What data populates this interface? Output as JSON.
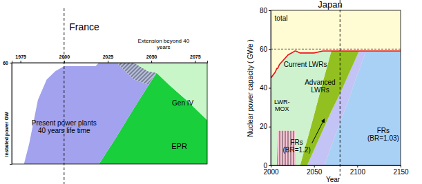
{
  "chart_data": [
    {
      "type": "area",
      "title": "France",
      "stacked": true,
      "y_label": "Installed power GW",
      "x": [
        1970,
        1977,
        1980,
        1985,
        1990,
        1995,
        2000,
        2018,
        2020,
        2030,
        2040,
        2048,
        2053,
        2060,
        2070,
        2082
      ],
      "xlim": [
        1970,
        2082
      ],
      "xticks": [
        1975,
        2000,
        2025,
        2050,
        2075
      ],
      "ylim": [
        0,
        60
      ],
      "yticks": [
        60
      ],
      "vlines": [
        2000
      ],
      "series": [
        {
          "name": "EPR",
          "color": "#19cf3c",
          "values": [
            0,
            0,
            0,
            0,
            0,
            0,
            0,
            0,
            0,
            16,
            33,
            46,
            54,
            47,
            38,
            26
          ]
        },
        {
          "name": "Present power plants 40 years life time",
          "color": "#a2a2ee",
          "values": [
            0,
            0,
            12,
            38,
            50,
            55,
            58,
            58,
            60,
            44,
            17,
            1,
            0,
            0,
            0,
            0
          ]
        },
        {
          "name": "Extension beyond 40 years",
          "color": "#b8c0de",
          "line_style": "hatch",
          "values": [
            0,
            0,
            0,
            0,
            0,
            0,
            0,
            0,
            0,
            0,
            10,
            8,
            0,
            0,
            0,
            0
          ]
        },
        {
          "name": "Gen IV",
          "color": "#c9f6c9",
          "values": [
            0,
            0,
            0,
            0,
            0,
            0,
            0,
            0,
            0,
            0,
            0,
            5,
            6,
            13,
            22,
            34
          ]
        }
      ]
    },
    {
      "type": "area",
      "title": "Japan",
      "stacked": true,
      "x_label": "Year",
      "y_label": "Nuclear power capacity ( GWe )",
      "x": [
        2000,
        2005,
        2007,
        2008,
        2010,
        2020,
        2028,
        2029,
        2034,
        2040,
        2042,
        2050,
        2060,
        2062,
        2070,
        2080,
        2090,
        2100,
        2102,
        2110,
        2120,
        2150
      ],
      "xlim": [
        2000,
        2150
      ],
      "xticks": [
        2000,
        2050,
        2100,
        2150
      ],
      "ylim": [
        0,
        80
      ],
      "yticks": [
        0,
        20,
        40,
        60,
        80
      ],
      "vlines": [
        2080
      ],
      "hlines": [
        60
      ],
      "series": [
        {
          "name": "LWR-MOX",
          "color": "#f6c3d3",
          "line_style": "hatch",
          "values": [
            0,
            0,
            0,
            18,
            18,
            18,
            18,
            0,
            0,
            0,
            0,
            0,
            0,
            0,
            0,
            0,
            0,
            0,
            0,
            0,
            0,
            0
          ]
        },
        {
          "name": "FRs (BR=1.03)",
          "color": "#a9d1f5",
          "values": [
            0,
            0,
            0,
            0,
            0,
            0,
            0,
            0,
            0,
            0,
            0,
            0,
            0,
            0,
            10,
            22,
            34,
            47,
            49,
            59,
            59,
            59
          ]
        },
        {
          "name": "FRs (BR=1.2)",
          "color": "#c3c3f5",
          "values": [
            0,
            0,
            0,
            0,
            0,
            0,
            0,
            0,
            0,
            0,
            0,
            8,
            18,
            20,
            18,
            15,
            13,
            10,
            10,
            0,
            0,
            0
          ]
        },
        {
          "name": "Advanced LWRs",
          "color": "#93c021",
          "values": [
            0,
            0,
            0,
            0,
            0,
            0,
            0,
            0,
            0,
            10,
            13,
            18,
            25,
            26,
            31,
            22,
            12,
            2,
            0,
            0,
            0,
            0
          ]
        },
        {
          "name": "Current LWRs",
          "color": "#cdf2cd",
          "values": [
            45,
            48,
            50,
            32,
            34,
            39,
            41,
            59,
            58,
            48,
            45,
            32,
            16,
            13,
            0,
            0,
            0,
            0,
            0,
            0,
            0,
            0
          ]
        },
        {
          "name": "total",
          "type": "line",
          "color": "#e8141c",
          "values": [
            45,
            48,
            50,
            50,
            52,
            57,
            59,
            59,
            58,
            58,
            58,
            58,
            59,
            59,
            59,
            59,
            59,
            59,
            59,
            59,
            59,
            59
          ]
        }
      ]
    }
  ]
}
